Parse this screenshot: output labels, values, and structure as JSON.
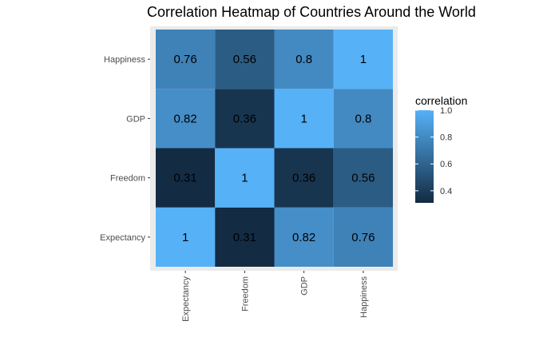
{
  "chart_data": {
    "type": "heatmap",
    "title": "Correlation Heatmap of Countries Around the World",
    "x_categories": [
      "Expectancy",
      "Freedom",
      "GDP",
      "Happiness"
    ],
    "y_categories": [
      "Expectancy",
      "Freedom",
      "GDP",
      "Happiness"
    ],
    "cells": [
      {
        "x": "Expectancy",
        "y": "Expectancy",
        "value": 1,
        "label": "1"
      },
      {
        "x": "Freedom",
        "y": "Expectancy",
        "value": 0.31,
        "label": "0.31"
      },
      {
        "x": "GDP",
        "y": "Expectancy",
        "value": 0.82,
        "label": "0.82"
      },
      {
        "x": "Happiness",
        "y": "Expectancy",
        "value": 0.76,
        "label": "0.76"
      },
      {
        "x": "Expectancy",
        "y": "Freedom",
        "value": 0.31,
        "label": "0.31"
      },
      {
        "x": "Freedom",
        "y": "Freedom",
        "value": 1,
        "label": "1"
      },
      {
        "x": "GDP",
        "y": "Freedom",
        "value": 0.36,
        "label": "0.36"
      },
      {
        "x": "Happiness",
        "y": "Freedom",
        "value": 0.56,
        "label": "0.56"
      },
      {
        "x": "Expectancy",
        "y": "GDP",
        "value": 0.82,
        "label": "0.82"
      },
      {
        "x": "Freedom",
        "y": "GDP",
        "value": 0.36,
        "label": "0.36"
      },
      {
        "x": "GDP",
        "y": "GDP",
        "value": 1,
        "label": "1"
      },
      {
        "x": "Happiness",
        "y": "GDP",
        "value": 0.8,
        "label": "0.8"
      },
      {
        "x": "Expectancy",
        "y": "Happiness",
        "value": 0.76,
        "label": "0.76"
      },
      {
        "x": "Freedom",
        "y": "Happiness",
        "value": 0.56,
        "label": "0.56"
      },
      {
        "x": "GDP",
        "y": "Happiness",
        "value": 0.8,
        "label": "0.8"
      },
      {
        "x": "Happiness",
        "y": "Happiness",
        "value": 1,
        "label": "1"
      }
    ],
    "legend": {
      "title": "correlation",
      "breaks": [
        {
          "value": 1.0,
          "label": "1.0"
        },
        {
          "value": 0.8,
          "label": "0.8"
        },
        {
          "value": 0.6,
          "label": "0.6"
        },
        {
          "value": 0.4,
          "label": "0.4"
        }
      ],
      "range": [
        0.31,
        1
      ],
      "position": "right"
    },
    "colors": {
      "low": "#132b43",
      "high": "#56b1f7",
      "panel_background": "#ebebeb",
      "tick": "#333333"
    }
  }
}
